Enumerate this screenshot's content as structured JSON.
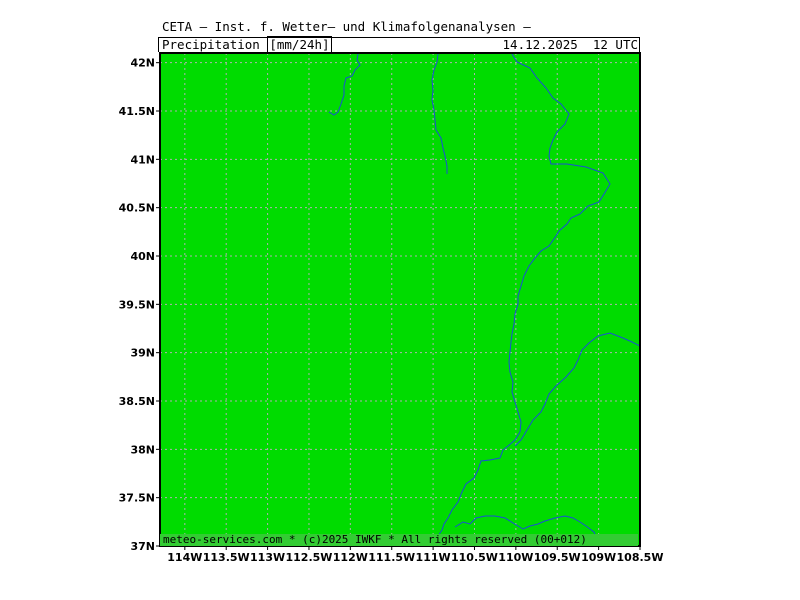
{
  "header": {
    "title": "CETA — Inst. f. Wetter— und Klimafolgenanalysen —",
    "parameter_prefix": "Precipitation ",
    "parameter_unit": "[mm/24h]",
    "datetime": "14.12.2025  12 UTC"
  },
  "map": {
    "fill_color": "#00dc00",
    "border_color": "#1a4fd6",
    "grid_color": "#b0b0b0",
    "lon_range": [
      -114.3,
      -108.5
    ],
    "lat_range": [
      37,
      42.1
    ],
    "lon_ticks": [
      {
        "value": -114,
        "label": "114W"
      },
      {
        "value": -113.5,
        "label": "113.5W"
      },
      {
        "value": -113,
        "label": "113W"
      },
      {
        "value": -112.5,
        "label": "112.5W"
      },
      {
        "value": -112,
        "label": "112W"
      },
      {
        "value": -111.5,
        "label": "111.5W"
      },
      {
        "value": -111,
        "label": "111W"
      },
      {
        "value": -110.5,
        "label": "110.5W"
      },
      {
        "value": -110,
        "label": "110W"
      },
      {
        "value": -109.5,
        "label": "109.5W"
      },
      {
        "value": -109,
        "label": "109W"
      },
      {
        "value": -108.5,
        "label": "108.5W"
      }
    ],
    "lat_ticks": [
      {
        "value": 42,
        "label": "42N"
      },
      {
        "value": 41.5,
        "label": "41.5N"
      },
      {
        "value": 41,
        "label": "41N"
      },
      {
        "value": 40.5,
        "label": "40.5N"
      },
      {
        "value": 40,
        "label": "40N"
      },
      {
        "value": 39.5,
        "label": "39.5N"
      },
      {
        "value": 39,
        "label": "39N"
      },
      {
        "value": 38.5,
        "label": "38.5N"
      },
      {
        "value": 38,
        "label": "38N"
      },
      {
        "value": 37.5,
        "label": "37.5N"
      },
      {
        "value": 37,
        "label": "37N"
      }
    ]
  },
  "footer": {
    "credit": "meteo-services.com * (c)2025 IWKF * All rights reserved (00+012)",
    "color": "#33cc33"
  }
}
